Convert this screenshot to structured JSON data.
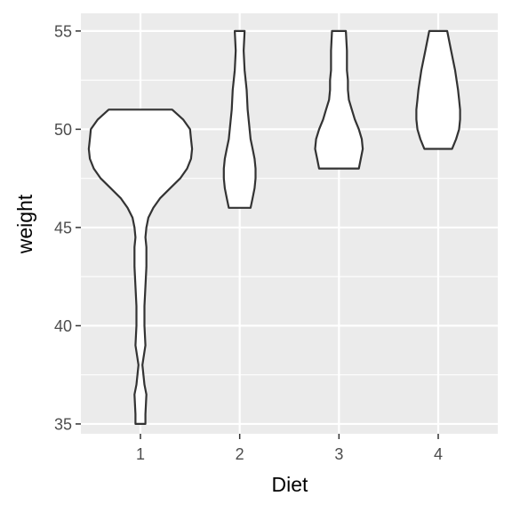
{
  "chart_data": {
    "type": "violin",
    "title": "",
    "xlabel": "Diet",
    "ylabel": "weight",
    "categories": [
      "1",
      "2",
      "3",
      "4"
    ],
    "ylim": [
      34.5,
      55.9
    ],
    "yticks": [
      35,
      40,
      45,
      50,
      55
    ],
    "grid": true,
    "legend": "none",
    "colors": {
      "panel": "#ebebeb",
      "grid": "#ffffff",
      "outline": "#333333",
      "fill": "#ffffff",
      "tick_text": "#4d4d4d"
    },
    "series": [
      {
        "category": "1",
        "range": [
          35,
          51
        ],
        "profile": [
          [
            35,
            0.05
          ],
          [
            35.5,
            0.05
          ],
          [
            36.5,
            0.06
          ],
          [
            37,
            0.04
          ],
          [
            38,
            0.02
          ],
          [
            39,
            0.05
          ],
          [
            40,
            0.04
          ],
          [
            41,
            0.04
          ],
          [
            42,
            0.05
          ],
          [
            43,
            0.06
          ],
          [
            44,
            0.06
          ],
          [
            44.5,
            0.05
          ],
          [
            45,
            0.06
          ],
          [
            45.5,
            0.08
          ],
          [
            46,
            0.13
          ],
          [
            46.5,
            0.2
          ],
          [
            47,
            0.3
          ],
          [
            47.5,
            0.4
          ],
          [
            48,
            0.47
          ],
          [
            48.5,
            0.51
          ],
          [
            49,
            0.52
          ],
          [
            49.5,
            0.51
          ],
          [
            50,
            0.5
          ],
          [
            50.5,
            0.43
          ],
          [
            51,
            0.32
          ]
        ]
      },
      {
        "category": "2",
        "range": [
          46,
          55
        ],
        "profile": [
          [
            46,
            0.11
          ],
          [
            46.5,
            0.13
          ],
          [
            47,
            0.15
          ],
          [
            47.5,
            0.16
          ],
          [
            48,
            0.16
          ],
          [
            48.5,
            0.15
          ],
          [
            49,
            0.13
          ],
          [
            49.5,
            0.11
          ],
          [
            50,
            0.1
          ],
          [
            51,
            0.08
          ],
          [
            52,
            0.07
          ],
          [
            53,
            0.05
          ],
          [
            54,
            0.04
          ],
          [
            55,
            0.05
          ]
        ]
      },
      {
        "category": "3",
        "range": [
          48,
          55
        ],
        "profile": [
          [
            48,
            0.2
          ],
          [
            48.5,
            0.22
          ],
          [
            49,
            0.24
          ],
          [
            49.5,
            0.23
          ],
          [
            50,
            0.2
          ],
          [
            50.5,
            0.16
          ],
          [
            51,
            0.13
          ],
          [
            51.5,
            0.1
          ],
          [
            52,
            0.09
          ],
          [
            52.5,
            0.09
          ],
          [
            53,
            0.08
          ],
          [
            54,
            0.08
          ],
          [
            55,
            0.07
          ]
        ]
      },
      {
        "category": "4",
        "range": [
          49,
          55
        ],
        "profile": [
          [
            49,
            0.14
          ],
          [
            49.5,
            0.18
          ],
          [
            50,
            0.21
          ],
          [
            50.5,
            0.22
          ],
          [
            51,
            0.22
          ],
          [
            51.5,
            0.21
          ],
          [
            52,
            0.2
          ],
          [
            53,
            0.17
          ],
          [
            54,
            0.13
          ],
          [
            55,
            0.09
          ]
        ]
      }
    ]
  }
}
